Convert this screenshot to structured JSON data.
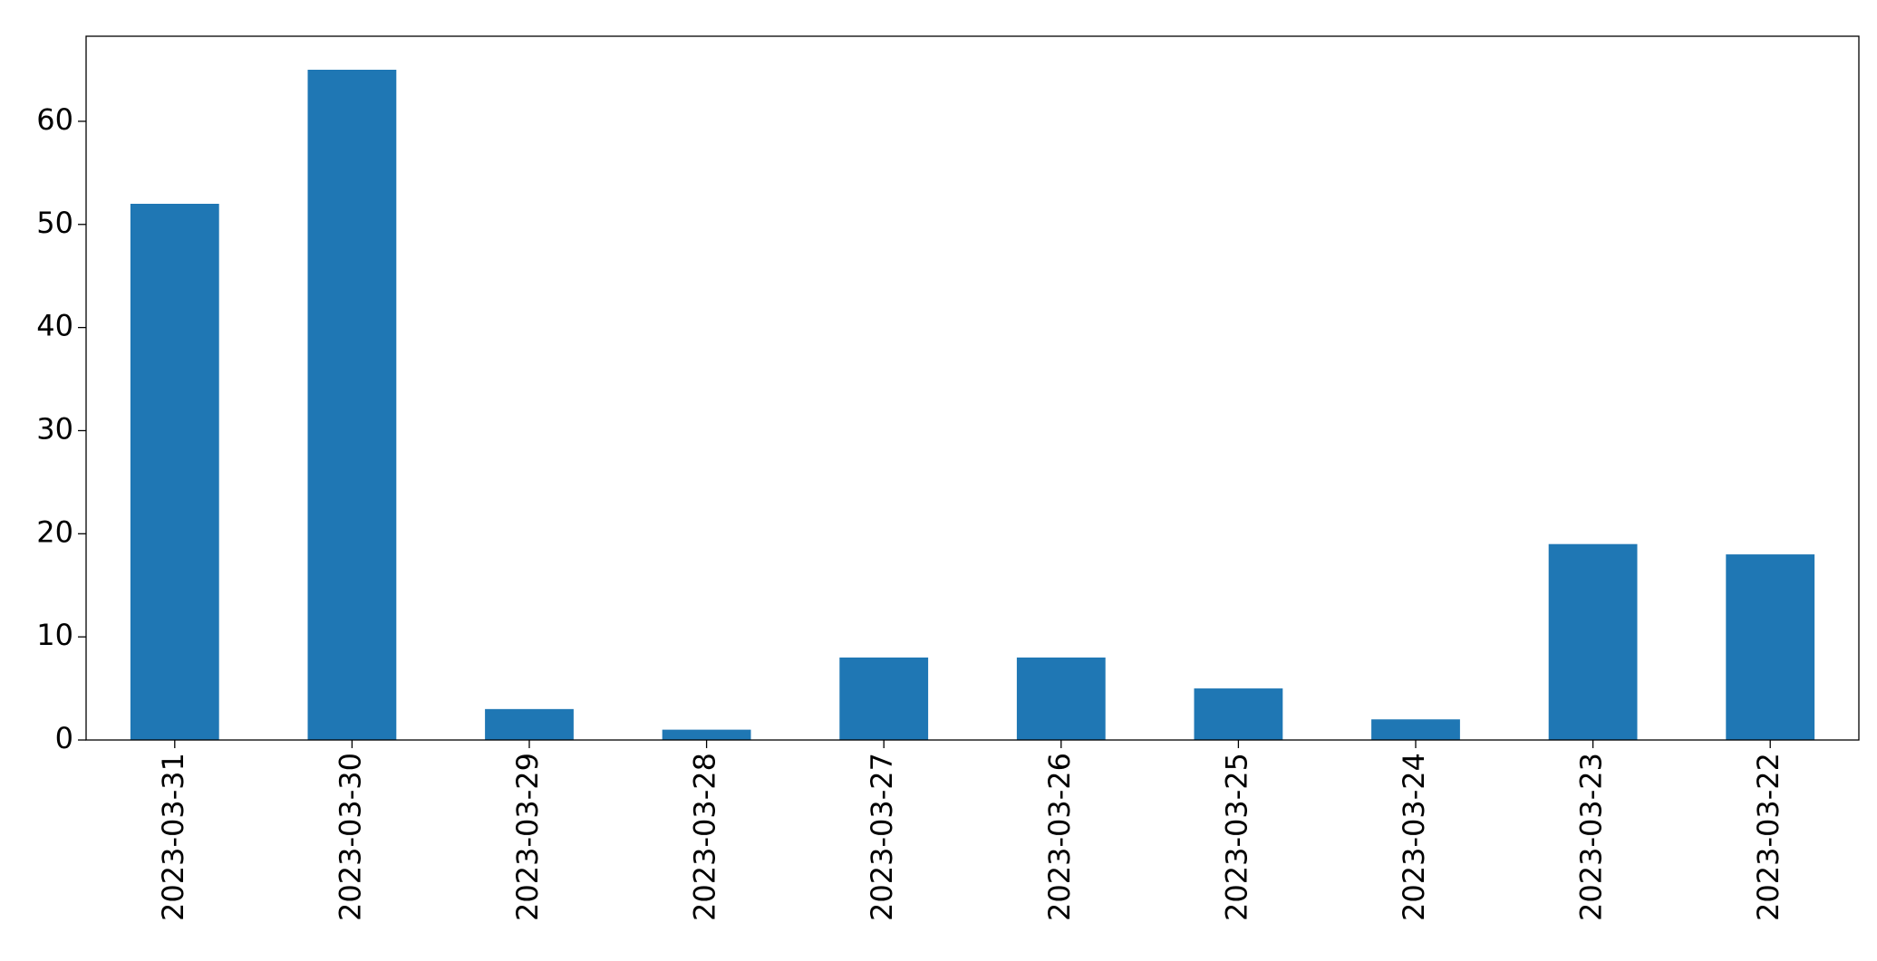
{
  "chart_data": {
    "type": "bar",
    "categories": [
      "2023-03-31",
      "2023-03-30",
      "2023-03-29",
      "2023-03-28",
      "2023-03-27",
      "2023-03-26",
      "2023-03-25",
      "2023-03-24",
      "2023-03-23",
      "2023-03-22"
    ],
    "values": [
      52,
      65,
      3,
      1,
      8,
      8,
      5,
      2,
      19,
      18
    ],
    "color": "#1f77b4",
    "ylim": [
      0,
      68.25
    ],
    "yticks": [
      0,
      10,
      20,
      30,
      40,
      50,
      60
    ],
    "grid": false
  }
}
